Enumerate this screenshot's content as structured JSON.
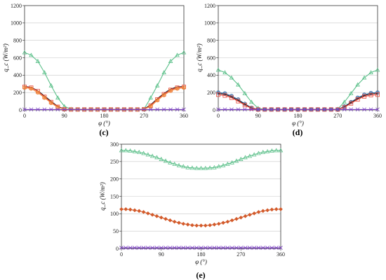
{
  "colors": {
    "green": "#5cc08a",
    "black": "#1a1a1a",
    "red": "#e8473a",
    "orange": "#f08a3c",
    "blue": "#3a6fa8",
    "darkorange": "#d35a2a",
    "purple": "#7a3fc0",
    "grid": "#c8c8c8"
  },
  "chart_data": [
    {
      "panel": "(c)",
      "type": "line",
      "xlabel": "φ (°)",
      "ylabel": "q_c (W/m²)",
      "xlim": [
        0,
        360
      ],
      "ylim": [
        0,
        1200
      ],
      "xticks": [
        "0",
        "90",
        "180",
        "270",
        "360"
      ],
      "yticks": [
        "0",
        "200",
        "400",
        "600",
        "800",
        "1000",
        "1200"
      ],
      "grid": "horizontal",
      "x": [
        0,
        15,
        30,
        45,
        60,
        75,
        90,
        105,
        120,
        135,
        150,
        165,
        180,
        195,
        210,
        225,
        240,
        255,
        270,
        285,
        300,
        315,
        330,
        345,
        360
      ],
      "series": [
        {
          "color": "green",
          "marker": "triangle",
          "values": [
            660,
            630,
            560,
            430,
            280,
            140,
            40,
            10,
            5,
            5,
            5,
            5,
            5,
            5,
            5,
            5,
            5,
            5,
            10,
            140,
            280,
            430,
            560,
            630,
            660
          ]
        },
        {
          "color": "black",
          "marker": "none",
          "values": [
            270,
            260,
            220,
            160,
            100,
            40,
            10,
            5,
            5,
            5,
            5,
            5,
            5,
            5,
            5,
            5,
            5,
            5,
            10,
            60,
            130,
            190,
            240,
            265,
            270
          ]
        },
        {
          "color": "red",
          "marker": "square",
          "values": [
            265,
            255,
            215,
            150,
            90,
            35,
            8,
            5,
            5,
            5,
            5,
            5,
            5,
            5,
            5,
            5,
            5,
            5,
            8,
            50,
            120,
            180,
            230,
            255,
            265
          ]
        },
        {
          "color": "orange",
          "marker": "circle",
          "values": [
            255,
            245,
            200,
            140,
            80,
            30,
            8,
            5,
            5,
            5,
            5,
            5,
            5,
            5,
            5,
            5,
            5,
            5,
            8,
            40,
            110,
            170,
            220,
            245,
            255
          ]
        },
        {
          "color": "purple",
          "marker": "cross",
          "values": [
            5,
            5,
            5,
            5,
            5,
            5,
            5,
            5,
            5,
            5,
            5,
            5,
            5,
            5,
            5,
            5,
            5,
            5,
            5,
            5,
            5,
            5,
            5,
            5,
            5
          ]
        }
      ]
    },
    {
      "panel": "(d)",
      "type": "line",
      "xlabel": "φ (°)",
      "ylabel": "q_c (W/m²)",
      "xlim": [
        0,
        360
      ],
      "ylim": [
        0,
        1200
      ],
      "xticks": [
        "0",
        "90",
        "180",
        "270",
        "360"
      ],
      "yticks": [
        "0",
        "200",
        "400",
        "600",
        "800",
        "1000",
        "1200"
      ],
      "grid": "horizontal",
      "x": [
        0,
        15,
        30,
        45,
        60,
        75,
        90,
        105,
        120,
        135,
        150,
        165,
        180,
        195,
        210,
        225,
        240,
        255,
        270,
        285,
        300,
        315,
        330,
        345,
        360
      ],
      "series": [
        {
          "color": "green",
          "marker": "triangle",
          "values": [
            460,
            430,
            370,
            290,
            190,
            90,
            20,
            5,
            5,
            5,
            5,
            5,
            5,
            5,
            5,
            5,
            5,
            5,
            10,
            90,
            190,
            290,
            370,
            430,
            460
          ]
        },
        {
          "color": "blue",
          "marker": "circle",
          "values": [
            200,
            190,
            160,
            120,
            70,
            25,
            5,
            5,
            5,
            5,
            5,
            5,
            5,
            5,
            5,
            5,
            5,
            5,
            5,
            40,
            90,
            140,
            175,
            195,
            200
          ]
        },
        {
          "color": "black",
          "marker": "none",
          "values": [
            190,
            180,
            150,
            110,
            65,
            22,
            5,
            5,
            5,
            5,
            5,
            5,
            5,
            5,
            5,
            5,
            5,
            5,
            5,
            35,
            85,
            130,
            165,
            185,
            190
          ]
        },
        {
          "color": "red",
          "marker": "square",
          "values": [
            175,
            165,
            140,
            100,
            55,
            18,
            5,
            5,
            5,
            5,
            5,
            5,
            5,
            5,
            5,
            5,
            5,
            5,
            5,
            30,
            75,
            120,
            155,
            170,
            175
          ]
        },
        {
          "color": "purple",
          "marker": "cross",
          "values": [
            5,
            5,
            5,
            5,
            5,
            5,
            5,
            5,
            5,
            5,
            5,
            5,
            5,
            5,
            5,
            5,
            5,
            5,
            5,
            5,
            5,
            5,
            5,
            5,
            5
          ]
        }
      ]
    },
    {
      "panel": "(e)",
      "type": "line",
      "xlabel": "φ (°)",
      "ylabel": "q_c (W/m²)",
      "xlim": [
        0,
        360
      ],
      "ylim": [
        0,
        300
      ],
      "xticks": [
        "0",
        "90",
        "180",
        "270",
        "360"
      ],
      "yticks": [
        "0",
        "50",
        "100",
        "150",
        "200",
        "250",
        "300"
      ],
      "grid": "horizontal",
      "x": [
        0,
        10,
        20,
        30,
        40,
        50,
        60,
        70,
        80,
        90,
        100,
        110,
        120,
        130,
        140,
        150,
        160,
        170,
        180,
        190,
        200,
        210,
        220,
        230,
        240,
        250,
        260,
        270,
        280,
        290,
        300,
        310,
        320,
        330,
        340,
        350,
        360
      ],
      "series": [
        {
          "color": "green",
          "marker": "triangle",
          "values": [
            282,
            282,
            281,
            279,
            277,
            274,
            270,
            266,
            262,
            257,
            252,
            247,
            243,
            239,
            236,
            233,
            232,
            231,
            231,
            231,
            232,
            233,
            236,
            239,
            243,
            247,
            252,
            257,
            262,
            266,
            270,
            274,
            277,
            279,
            281,
            282,
            282
          ]
        },
        {
          "color": "darkorange",
          "marker": "diamond",
          "values": [
            113,
            113,
            112,
            110,
            108,
            105,
            101,
            97,
            93,
            89,
            85,
            81,
            77,
            74,
            71,
            69,
            67,
            66,
            66,
            66,
            67,
            69,
            71,
            74,
            77,
            81,
            85,
            89,
            93,
            97,
            101,
            105,
            108,
            110,
            112,
            113,
            113
          ]
        },
        {
          "color": "purple",
          "marker": "cross",
          "values": [
            2,
            2,
            2,
            2,
            2,
            2,
            2,
            2,
            2,
            2,
            2,
            2,
            2,
            2,
            2,
            2,
            2,
            2,
            2,
            2,
            2,
            2,
            2,
            2,
            2,
            2,
            2,
            2,
            2,
            2,
            2,
            2,
            2,
            2,
            2,
            2,
            2
          ]
        }
      ]
    }
  ]
}
